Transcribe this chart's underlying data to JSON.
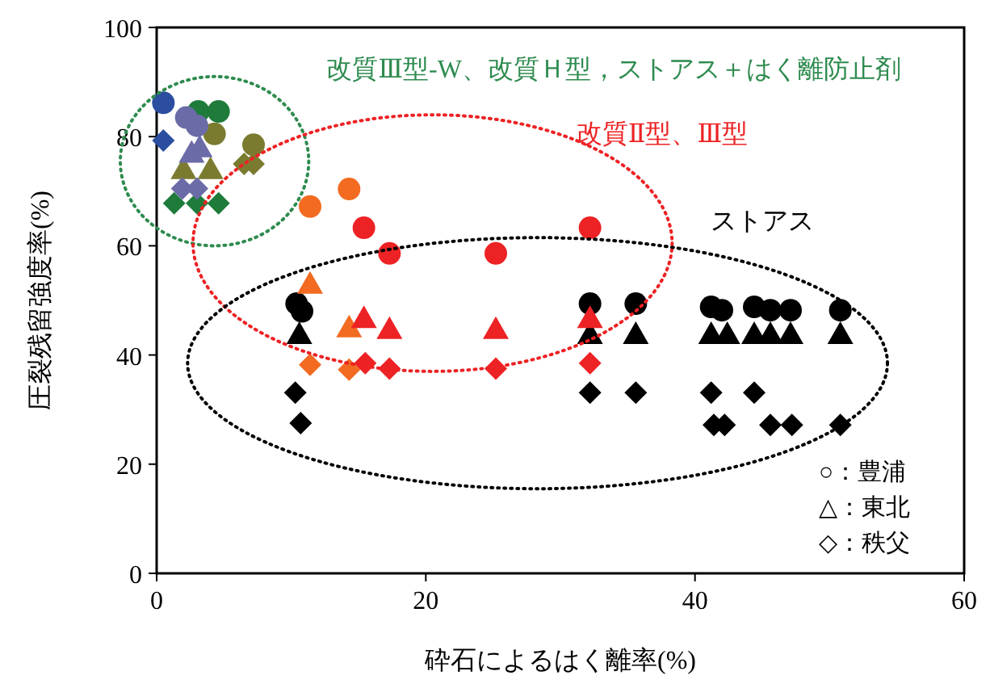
{
  "chart_data": {
    "type": "scatter",
    "xlabel": "砕石によるはく離率(%)",
    "ylabel": "圧裂残留強度率(%)",
    "xlim": [
      0,
      60
    ],
    "ylim": [
      0,
      100
    ],
    "xticks": [
      0,
      20,
      40,
      60
    ],
    "yticks": [
      0,
      20,
      40,
      60,
      80,
      100
    ],
    "grid": false,
    "annotations": [
      "改質Ⅲ型-W、改質Ｈ型，ストアス＋はく離防止剤",
      "改質Ⅱ型、Ⅲ型",
      "ストアス",
      "○：豊浦",
      "△：東北",
      "◇：秩父"
    ],
    "series": [
      {
        "color": "#1e7b3a",
        "marker": "circle",
        "x": [
          3.1,
          4.6
        ],
        "values": [
          84.6,
          84.6
        ]
      },
      {
        "color": "#1e7b3a",
        "marker": "diamond",
        "x": [
          1.3,
          3.0,
          4.6
        ],
        "values": [
          67.8,
          67.8,
          67.8
        ]
      },
      {
        "color": "#7b7b30",
        "marker": "circle",
        "x": [
          4.3,
          7.2
        ],
        "values": [
          80.5,
          78.5
        ]
      },
      {
        "color": "#7b7b30",
        "marker": "triangle",
        "x": [
          2.0,
          4.0
        ],
        "values": [
          74,
          74
        ]
      },
      {
        "color": "#7b7b30",
        "marker": "diamond",
        "x": [
          6.5,
          7.2
        ],
        "values": [
          75,
          75
        ]
      },
      {
        "color": "#2b4ea0",
        "marker": "circle",
        "x": [
          0.5
        ],
        "values": [
          86.2
        ]
      },
      {
        "color": "#2b4ea0",
        "marker": "diamond",
        "x": [
          0.5
        ],
        "values": [
          79.3
        ]
      },
      {
        "color": "#6b6ba8",
        "marker": "circle",
        "x": [
          2.2,
          3.0
        ],
        "values": [
          83.5,
          82
        ]
      },
      {
        "color": "#6b6ba8",
        "marker": "triangle",
        "x": [
          2.6,
          3.2
        ],
        "values": [
          77,
          78
        ]
      },
      {
        "color": "#6b6ba8",
        "marker": "diamond",
        "x": [
          1.9,
          3.0
        ],
        "values": [
          70.5,
          70.5
        ]
      },
      {
        "color": "#000000",
        "marker": "circle",
        "x": [
          10.4,
          10.8,
          32.2,
          35.6,
          41.2,
          42.0,
          44.4,
          45.6,
          47.1,
          50.8
        ],
        "values": [
          49.4,
          48,
          49.4,
          49.4,
          48.8,
          48.2,
          48.8,
          48.2,
          48.2,
          48.2
        ]
      },
      {
        "color": "#000000",
        "marker": "triangle",
        "x": [
          10.6,
          32.2,
          35.6,
          41.2,
          42.4,
          44.4,
          45.6,
          47.1,
          50.8
        ],
        "values": [
          43.8,
          43.8,
          43.8,
          43.8,
          43.8,
          43.8,
          43.8,
          43.8,
          43.8
        ]
      },
      {
        "color": "#000000",
        "marker": "diamond",
        "x": [
          10.3,
          10.7,
          32.2,
          35.6,
          41.2,
          44.4,
          41.4,
          42.2,
          45.6,
          47.2,
          50.8
        ],
        "values": [
          33.1,
          27.5,
          33.1,
          33.1,
          33.1,
          33.1,
          27.2,
          27.2,
          27.2,
          27.2,
          27.2
        ]
      },
      {
        "color": "#f26b21",
        "marker": "circle",
        "x": [
          11.4,
          14.3
        ],
        "values": [
          67.2,
          70.4
        ]
      },
      {
        "color": "#f26b21",
        "marker": "triangle",
        "x": [
          11.4,
          14.3
        ],
        "values": [
          53,
          45
        ]
      },
      {
        "color": "#f26b21",
        "marker": "diamond",
        "x": [
          11.4,
          14.3
        ],
        "values": [
          38.2,
          37.3
        ]
      },
      {
        "color": "#ed2224",
        "marker": "circle",
        "x": [
          15.4,
          17.3,
          25.2,
          32.2
        ],
        "values": [
          63.3,
          58.6,
          58.6,
          63.3
        ]
      },
      {
        "color": "#ed2224",
        "marker": "triangle",
        "x": [
          15.4,
          17.3,
          25.2,
          32.2
        ],
        "values": [
          46.7,
          44.7,
          44.7,
          46.7
        ]
      },
      {
        "color": "#ed2224",
        "marker": "diamond",
        "x": [
          15.5,
          17.3,
          25.2,
          32.2
        ],
        "values": [
          38.5,
          37.5,
          37.5,
          38.5
        ]
      }
    ]
  }
}
